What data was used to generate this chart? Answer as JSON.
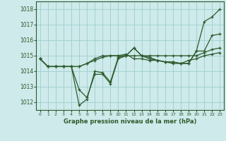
{
  "title": "Graphe pression niveau de la mer (hPa)",
  "bg_color": "#ceeaea",
  "grid_color": "#9ecece",
  "line_color": "#2d5a2d",
  "marker_color": "#2d5a2d",
  "xlim": [
    -0.5,
    23.5
  ],
  "ylim": [
    1011.5,
    1018.5
  ],
  "yticks": [
    1012,
    1013,
    1014,
    1015,
    1016,
    1017,
    1018
  ],
  "xticks": [
    0,
    1,
    2,
    3,
    4,
    5,
    6,
    7,
    8,
    9,
    10,
    11,
    12,
    13,
    14,
    15,
    16,
    17,
    18,
    19,
    20,
    21,
    22,
    23
  ],
  "series": [
    [
      1014.8,
      1014.3,
      1014.3,
      1014.3,
      1014.3,
      1012.8,
      1012.3,
      1013.8,
      1013.8,
      1013.2,
      1014.8,
      1015.0,
      1015.5,
      1015.0,
      1014.8,
      1014.7,
      1014.6,
      1014.6,
      1014.5,
      1014.5,
      1015.3,
      1017.2,
      1017.5,
      1018.0
    ],
    [
      1014.8,
      1014.3,
      1014.3,
      1014.3,
      1014.3,
      1011.8,
      1012.2,
      1014.0,
      1013.9,
      1013.3,
      1014.9,
      1015.0,
      1015.5,
      1015.0,
      1014.9,
      1014.7,
      1014.6,
      1014.6,
      1014.5,
      1014.5,
      1015.3,
      1015.3,
      1016.3,
      1016.4
    ],
    [
      1014.8,
      1014.3,
      1014.3,
      1014.3,
      1014.3,
      1014.3,
      1014.5,
      1014.8,
      1015.0,
      1015.0,
      1015.0,
      1015.0,
      1015.0,
      1015.0,
      1015.0,
      1015.0,
      1015.0,
      1015.0,
      1015.0,
      1015.0,
      1015.0,
      1015.2,
      1015.4,
      1015.5
    ],
    [
      1014.8,
      1014.3,
      1014.3,
      1014.3,
      1014.3,
      1014.3,
      1014.5,
      1014.7,
      1014.9,
      1015.0,
      1015.0,
      1015.1,
      1014.8,
      1014.8,
      1014.7,
      1014.7,
      1014.6,
      1014.5,
      1014.5,
      1014.7,
      1014.8,
      1015.0,
      1015.1,
      1015.2
    ]
  ]
}
